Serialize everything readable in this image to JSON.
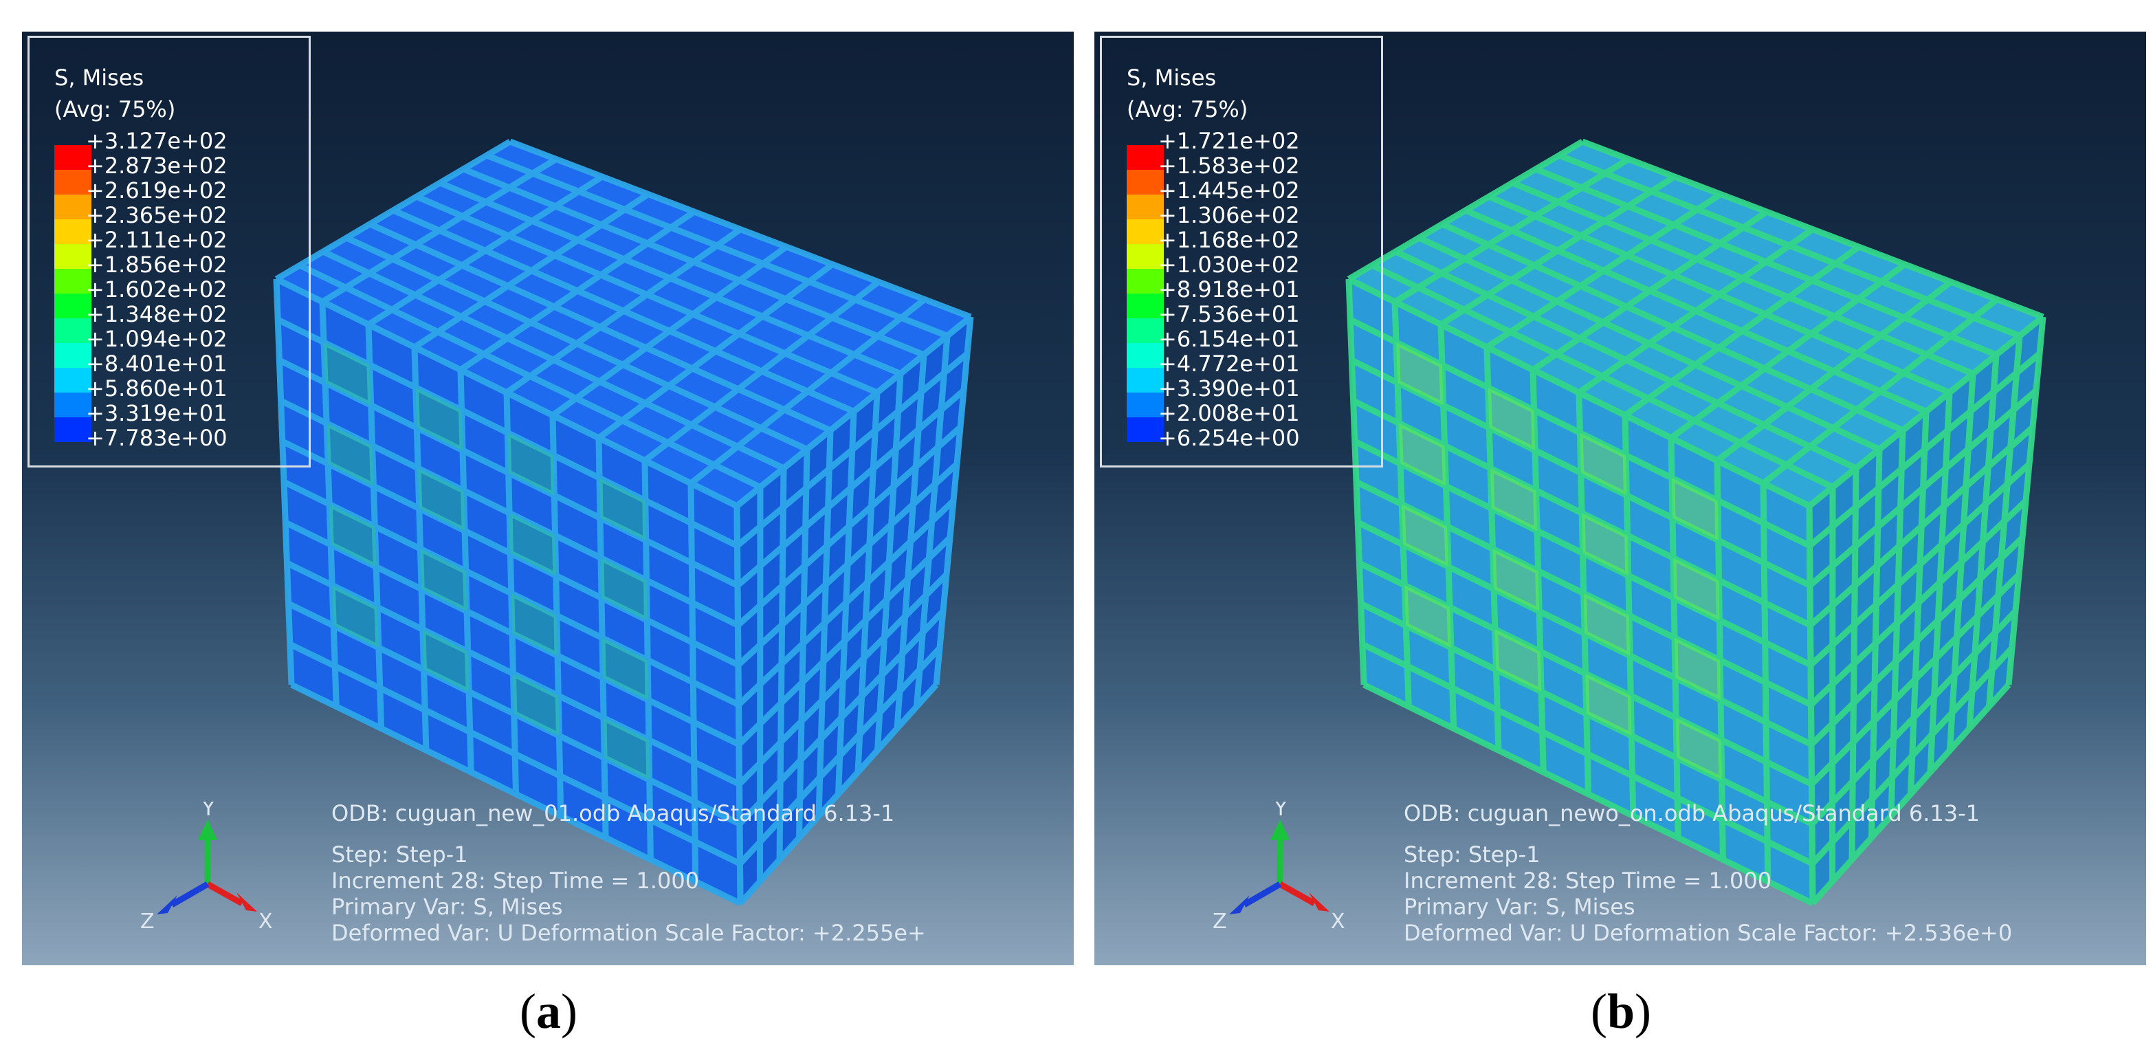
{
  "panels": [
    {
      "id": "a",
      "legend": {
        "title": "S, Mises",
        "subtitle": "(Avg: 75%)",
        "values": [
          "+3.127e+02",
          "+2.873e+02",
          "+2.619e+02",
          "+2.365e+02",
          "+2.111e+02",
          "+1.856e+02",
          "+1.602e+02",
          "+1.348e+02",
          "+1.094e+02",
          "+8.401e+01",
          "+5.860e+01",
          "+3.319e+01",
          "+7.783e+00"
        ]
      },
      "info": {
        "odb": "ODB: cuguan_new_01.odb    Abaqus/Standard 6.13-1",
        "step": "Step: Step-1",
        "increment": "Increment     28: Step Time =     1.000",
        "primary_var": "Primary Var: S, Mises",
        "deformed_var": "Deformed Var: U   Deformation Scale Factor: +2.255e+"
      },
      "caption_open": "(",
      "caption_letter": "a",
      "caption_close": ")"
    },
    {
      "id": "b",
      "legend": {
        "title": "S, Mises",
        "subtitle": "(Avg: 75%)",
        "values": [
          "+1.721e+02",
          "+1.583e+02",
          "+1.445e+02",
          "+1.306e+02",
          "+1.168e+02",
          "+1.030e+02",
          "+8.918e+01",
          "+7.536e+01",
          "+6.154e+01",
          "+4.772e+01",
          "+3.390e+01",
          "+2.008e+01",
          "+6.254e+00"
        ]
      },
      "info": {
        "odb": "ODB: cuguan_newo_on.odb    Abaqus/Standard 6.13-1",
        "step": "Step: Step-1",
        "increment": "Increment     28: Step Time =     1.000",
        "primary_var": "Primary Var: S, Mises",
        "deformed_var": "Deformed Var: U   Deformation Scale Factor: +2.536e+0"
      },
      "caption_open": "(",
      "caption_letter": "b",
      "caption_close": ")"
    }
  ],
  "triad_labels": {
    "y": "Y",
    "z": "Z",
    "x": "X"
  },
  "colormap": [
    "#ff0000",
    "#ff5a00",
    "#ffa500",
    "#ffd200",
    "#d2ff00",
    "#5aff00",
    "#00ff28",
    "#00ff8c",
    "#00ffd2",
    "#00d2ff",
    "#0082ff",
    "#0032ff",
    "#0000ff"
  ],
  "model_tints": {
    "a": {
      "front": "#1a63e6",
      "side": "#155ad6",
      "top": "#1f6bef",
      "bar": "#2ea6ea",
      "hot": "#2bd06a"
    },
    "b": {
      "front": "#2a9bd8",
      "side": "#2388c9",
      "top": "#2fa8d8",
      "bar": "#33d68a",
      "hot": "#86f23a"
    }
  }
}
